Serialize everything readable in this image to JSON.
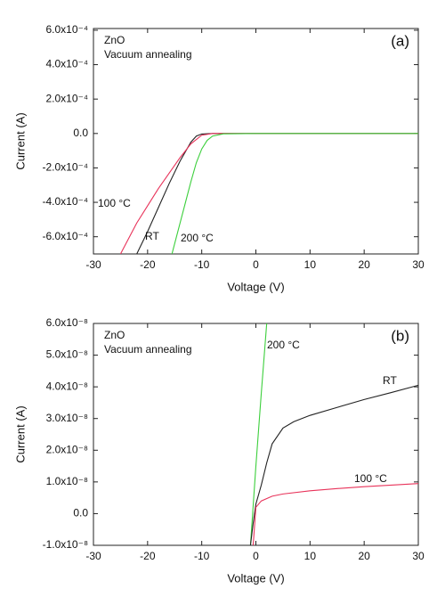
{
  "chart_data": [
    {
      "type": "line",
      "panel_label": "(a)",
      "annotations": [
        "ZnO",
        "Vacuum annealing"
      ],
      "x_label": "Voltage (V)",
      "y_label": "Current (A)",
      "xlim": [
        -30,
        30
      ],
      "xticks": [
        -30,
        -20,
        -10,
        0,
        10,
        20,
        30
      ],
      "ylim": [
        -0.0007,
        0.00061
      ],
      "yticks": [
        {
          "value": 0.0006,
          "label": "6.0x10⁻⁴"
        },
        {
          "value": 0.0004,
          "label": "4.0x10⁻⁴"
        },
        {
          "value": 0.0002,
          "label": "2.0x10⁻⁴"
        },
        {
          "value": 0,
          "label": "0.0"
        },
        {
          "value": -0.0002,
          "label": "-2.0x10⁻⁴"
        },
        {
          "value": -0.0004,
          "label": "-4.0x10⁻⁴"
        },
        {
          "value": -0.0006,
          "label": "-6.0x10⁻⁴"
        }
      ],
      "series": [
        {
          "name": "RT",
          "color": "#222222",
          "x": [
            -22,
            -20,
            -18,
            -16,
            -14,
            -12,
            -11,
            -10,
            -8,
            -5,
            0,
            30
          ],
          "values": [
            -0.0007,
            -0.00057,
            -0.00043,
            -0.00029,
            -0.00016,
            -5e-05,
            -1.5e-05,
            -3e-06,
            0,
            0,
            0,
            0
          ]
        },
        {
          "name": "100 °C",
          "color": "#e8335a",
          "x": [
            -25,
            -22,
            -20,
            -18,
            -16,
            -14,
            -12,
            -10,
            -8,
            0,
            30
          ],
          "values": [
            -0.0007,
            -0.00052,
            -0.00042,
            -0.00032,
            -0.00023,
            -0.00014,
            -6e-05,
            -1e-05,
            0,
            0,
            0
          ]
        },
        {
          "name": "200 °C",
          "color": "#3ccf3c",
          "x": [
            -15.5,
            -14,
            -13,
            -12,
            -11,
            -10,
            -9,
            -8,
            -6,
            0,
            30
          ],
          "values": [
            -0.0007,
            -0.00052,
            -0.0004,
            -0.00028,
            -0.00017,
            -9e-05,
            -4e-05,
            -1.5e-05,
            -2e-06,
            0,
            0
          ]
        }
      ]
    },
    {
      "type": "line",
      "panel_label": "(b)",
      "annotations": [
        "ZnO",
        "Vacuum annealing"
      ],
      "x_label": "Voltage (V)",
      "y_label": "Current (A)",
      "xlim": [
        -30,
        30
      ],
      "xticks": [
        -30,
        -20,
        -10,
        0,
        10,
        20,
        30
      ],
      "ylim": [
        -1e-08,
        6e-08
      ],
      "yticks": [
        {
          "value": 6e-08,
          "label": "6.0x10⁻⁸"
        },
        {
          "value": 5e-08,
          "label": "5.0x10⁻⁸"
        },
        {
          "value": 4e-08,
          "label": "4.0x10⁻⁸"
        },
        {
          "value": 3e-08,
          "label": "3.0x10⁻⁸"
        },
        {
          "value": 2e-08,
          "label": "2.0x10⁻⁸"
        },
        {
          "value": 1e-08,
          "label": "1.0x10⁻⁸"
        },
        {
          "value": 0,
          "label": "0.0"
        },
        {
          "value": -1e-08,
          "label": "-1.0x10⁻⁸"
        }
      ],
      "series": [
        {
          "name": "200 °C",
          "color": "#3ccf3c",
          "x": [
            -1,
            0,
            1,
            2
          ],
          "values": [
            -1e-08,
            1.5e-08,
            3.8e-08,
            6e-08
          ]
        },
        {
          "name": "RT",
          "color": "#222222",
          "x": [
            -1,
            -0.5,
            0,
            1,
            2,
            3,
            5,
            7,
            10,
            15,
            20,
            25,
            30
          ],
          "values": [
            -1e-08,
            -3e-09,
            3e-09,
            9e-09,
            1.6e-08,
            2.2e-08,
            2.7e-08,
            2.9e-08,
            3.1e-08,
            3.35e-08,
            3.6e-08,
            3.82e-08,
            4.05e-08
          ]
        },
        {
          "name": "100 °C",
          "color": "#e8335a",
          "x": [
            -0.5,
            0,
            1,
            3,
            5,
            10,
            15,
            20,
            25,
            30
          ],
          "values": [
            -1e-08,
            2e-09,
            4e-09,
            5.5e-09,
            6.2e-09,
            7.2e-09,
            7.9e-09,
            8.5e-09,
            9e-09,
            9.5e-09
          ]
        }
      ]
    }
  ]
}
